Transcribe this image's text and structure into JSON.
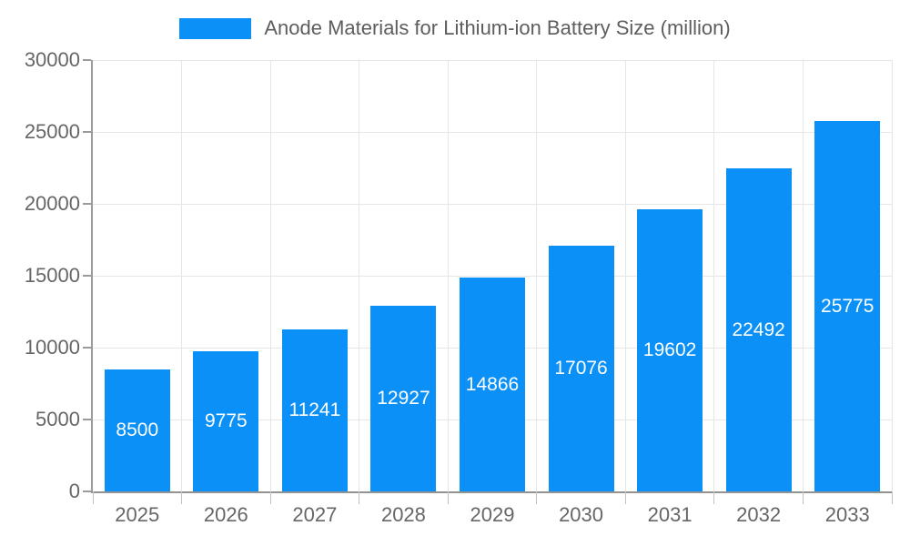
{
  "chart_data": {
    "type": "bar",
    "title": "Anode Materials for Lithium-ion Battery Size (million)",
    "categories": [
      "2025",
      "2026",
      "2027",
      "2028",
      "2029",
      "2030",
      "2031",
      "2032",
      "2033"
    ],
    "values": [
      8500,
      9775,
      11241,
      12927,
      14866,
      17076,
      19602,
      22492,
      25775
    ],
    "xlabel": "",
    "ylabel": "",
    "ylim": [
      0,
      30000
    ],
    "yticks": [
      0,
      5000,
      10000,
      15000,
      20000,
      25000,
      30000
    ],
    "grid": true,
    "legend_position": "top",
    "bar_labels_inside": true,
    "colors": {
      "bar": "#0a90f6",
      "bar_label": "#ffffff",
      "axis_line": "#9b9b9b",
      "gridline": "#e6e6e6",
      "tick_text": "#666666",
      "title_text": "#5d5d5d"
    }
  }
}
